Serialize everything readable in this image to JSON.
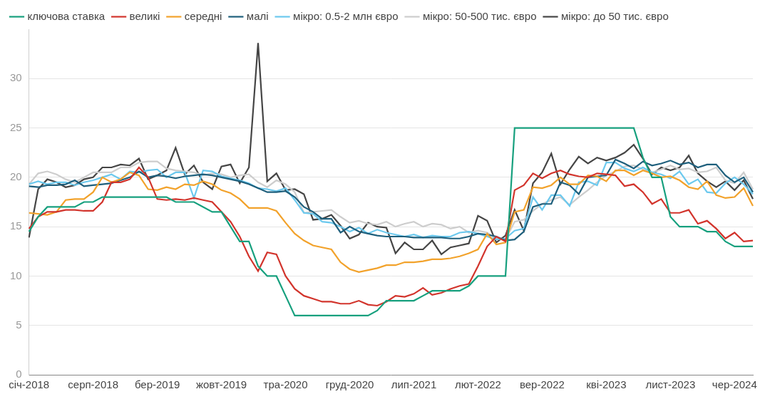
{
  "chart_data": {
    "type": "line",
    "categories": [
      "січ-2018",
      null,
      null,
      null,
      null,
      null,
      null,
      "серп-2018",
      null,
      null,
      null,
      null,
      null,
      null,
      "бер-2019",
      null,
      null,
      null,
      null,
      null,
      null,
      "жовт-2019",
      null,
      null,
      null,
      null,
      null,
      null,
      "тра-2020",
      null,
      null,
      null,
      null,
      null,
      null,
      "груд-2020",
      null,
      null,
      null,
      null,
      null,
      null,
      "лип-2021",
      null,
      null,
      null,
      null,
      null,
      null,
      "лют-2022",
      null,
      null,
      null,
      null,
      null,
      null,
      "вер-2022",
      null,
      null,
      null,
      null,
      null,
      null,
      "кві-2023",
      null,
      null,
      null,
      null,
      null,
      null,
      "лист-2023",
      null,
      null,
      null,
      null,
      null,
      null,
      "чер-2024",
      null,
      null
    ],
    "series": [
      {
        "name": "ключова ставка",
        "color": "#17a07e",
        "values": [
          14.5,
          16,
          17,
          17,
          17,
          17,
          17.5,
          17.5,
          18,
          18,
          18,
          18,
          18,
          18,
          18,
          18,
          17.5,
          17.5,
          17.5,
          17,
          16.5,
          16.5,
          15,
          13.5,
          13.5,
          11,
          10,
          10,
          8,
          6,
          6,
          6,
          6,
          6,
          6,
          6,
          6,
          6,
          6.5,
          7.5,
          7.5,
          7.5,
          7.5,
          8,
          8.5,
          8.5,
          8.5,
          8.5,
          9,
          10,
          10,
          10,
          10,
          25,
          25,
          25,
          25,
          25,
          25,
          25,
          25,
          25,
          25,
          25,
          25,
          25,
          25,
          22,
          20,
          20,
          16,
          15,
          15,
          15,
          14.5,
          14.5,
          13.5,
          13,
          13,
          13
        ]
      },
      {
        "name": "великі",
        "color": "#d2342c",
        "values": [
          14.8,
          16,
          16.5,
          16.5,
          16.7,
          16.7,
          16.6,
          16.6,
          17.5,
          19.5,
          19.5,
          19.8,
          21,
          20,
          17.8,
          17.7,
          17.8,
          17.7,
          17.9,
          17.7,
          17.5,
          16.5,
          15.5,
          14,
          12,
          10.5,
          12.4,
          12.2,
          10,
          8.7,
          8,
          7.7,
          7.4,
          7.4,
          7.2,
          7.2,
          7.5,
          7.1,
          7,
          7.4,
          8,
          7.9,
          8.2,
          8.8,
          8.1,
          8.3,
          8.7,
          9,
          9.2,
          11,
          13,
          14,
          13.5,
          18.7,
          19.2,
          20.4,
          19.9,
          20.4,
          20.7,
          20.3,
          20.1,
          20,
          20.4,
          20.3,
          20.2,
          19.1,
          19.3,
          18.5,
          17.3,
          17.8,
          16.4,
          16.4,
          16.7,
          15.3,
          15.6,
          14.8,
          13.8,
          14.4,
          13.5,
          13.6
        ]
      },
      {
        "name": "середні",
        "color": "#f2a22b",
        "values": [
          16.4,
          16.3,
          16.2,
          16.5,
          17.7,
          17.8,
          17.8,
          18.5,
          20,
          19.5,
          19.8,
          20.5,
          20.2,
          18.8,
          18.7,
          19,
          18.8,
          19.3,
          19.2,
          19.6,
          19.3,
          18.7,
          18.4,
          17.8,
          16.9,
          16.9,
          16.9,
          16.6,
          15.4,
          14.3,
          13.6,
          13.1,
          12.9,
          12.7,
          11.4,
          10.7,
          10.4,
          10.6,
          10.8,
          11.1,
          11.1,
          11.4,
          11.4,
          11.5,
          11.7,
          11.7,
          11.8,
          12,
          12.3,
          12.7,
          14.3,
          13.2,
          13.4,
          16.5,
          16.7,
          19,
          18.9,
          19.2,
          20,
          19.3,
          19.3,
          20.2,
          20.1,
          19.6,
          20.7,
          20.7,
          20.2,
          20.7,
          20.4,
          20,
          20.1,
          19.7,
          19,
          18.8,
          19.6,
          18.2,
          17.9,
          18,
          18.9,
          17.1
        ]
      },
      {
        "name": "малі",
        "color": "#1e5f7c",
        "values": [
          19.1,
          19,
          19.2,
          19.2,
          19.3,
          19.7,
          19.1,
          19.2,
          19.3,
          19.4,
          19.7,
          20,
          20.6,
          20,
          20.2,
          20.1,
          19.9,
          20.1,
          20.2,
          20.3,
          20.2,
          20,
          19.8,
          19.6,
          19.3,
          18.9,
          18.5,
          18.5,
          18.6,
          18,
          17,
          16.5,
          15.8,
          15.8,
          14.4,
          15,
          14.5,
          14.3,
          14.1,
          14,
          14,
          14,
          13.9,
          13.9,
          13.9,
          13.9,
          13.8,
          13.8,
          14,
          14.3,
          14.2,
          14,
          13.6,
          13.7,
          14.5,
          17,
          17.3,
          17.3,
          19.5,
          19.2,
          18.3,
          20,
          20.1,
          20.2,
          21.8,
          21.4,
          20.9,
          21.6,
          21.2,
          21.4,
          21.7,
          21.3,
          21.5,
          21,
          21.3,
          21.3,
          20.2,
          19.5,
          20,
          18.5
        ]
      },
      {
        "name": "мікро: 0.5-2 млн євро",
        "color": "#6cc9ee",
        "values": [
          19.3,
          19.6,
          19.3,
          19.5,
          19.5,
          19.2,
          19.5,
          19.7,
          20,
          20.3,
          19.8,
          20.6,
          20.5,
          20.7,
          20.8,
          20,
          20.5,
          20.5,
          17.9,
          20.7,
          20.6,
          20.1,
          19.9,
          19.7,
          19.4,
          18.9,
          18.8,
          18.6,
          18.9,
          17.7,
          16.4,
          16.3,
          15.5,
          15.4,
          15,
          14.5,
          14.9,
          14.3,
          14.7,
          14.4,
          14.2,
          14,
          14.2,
          13.9,
          14.1,
          14,
          14,
          14.4,
          14.5,
          14.3,
          14,
          13.7,
          13.8,
          14.6,
          14.8,
          18,
          16.7,
          18.2,
          18.2,
          17.1,
          19.5,
          19.6,
          19.2,
          21.5,
          21.5,
          20.9,
          20.6,
          21,
          20.5,
          20.3,
          19.9,
          20.6,
          19.3,
          19.8,
          18.5,
          18.4,
          19.4,
          20,
          19.3,
          18.3
        ]
      },
      {
        "name": "мікро: 50-500 тис. євро",
        "color": "#cdcdcd",
        "values": [
          19.3,
          20.4,
          20.6,
          20.3,
          19.8,
          19.5,
          20,
          20.5,
          20.5,
          20.5,
          21,
          21,
          21.5,
          21.6,
          21.6,
          20.9,
          20.7,
          20.6,
          20.5,
          20.2,
          20.4,
          20.3,
          20,
          20.2,
          20.3,
          19.5,
          19,
          19.7,
          19.3,
          18.5,
          16.4,
          16.5,
          16.6,
          16.7,
          16,
          15.4,
          15.6,
          15.3,
          15.2,
          15.5,
          15,
          15.3,
          15.5,
          15,
          15.3,
          15.2,
          14.8,
          15,
          14.4,
          14.6,
          14.4,
          13.8,
          13.7,
          15.5,
          15.7,
          16.6,
          17.3,
          17.7,
          18,
          17.2,
          18,
          18.7,
          19.5,
          20.2,
          20.6,
          21.1,
          21.2,
          20.8,
          20.5,
          20.8,
          21.2,
          20.8,
          20.9,
          20.5,
          20.6,
          21,
          19.7,
          19.4,
          20.5,
          18.8
        ]
      },
      {
        "name": "мікро: до 50 тис. євро",
        "color": "#454545",
        "values": [
          13.9,
          18.8,
          19.8,
          19.5,
          19,
          19.2,
          19.8,
          20,
          21,
          21,
          21.3,
          21.2,
          21.9,
          19.8,
          20.2,
          20.7,
          23,
          20.3,
          21.2,
          19.5,
          18.8,
          21.1,
          21.3,
          19.4,
          21,
          33.6,
          19.6,
          20.4,
          18.7,
          18.8,
          18.3,
          15.7,
          15.8,
          16.2,
          15.1,
          13.8,
          14.2,
          15.4,
          15,
          14.9,
          12.3,
          13.4,
          12.7,
          12.7,
          13.6,
          12.2,
          12.9,
          13.1,
          13.3,
          16.1,
          15.6,
          13.4,
          14.1,
          16.7,
          14.6,
          19.4,
          20.5,
          22.4,
          19.3,
          20.8,
          22.1,
          21.4,
          22,
          21.7,
          22,
          22.5,
          23.3,
          21.9,
          20.3,
          21,
          20.7,
          21,
          22.2,
          20.4,
          19.6,
          19,
          19.6,
          18.7,
          19.7,
          17.8
        ]
      }
    ],
    "ylim": [
      0,
      35
    ],
    "yticks": [
      0,
      5,
      10,
      15,
      20,
      25,
      30
    ],
    "grid": true,
    "legend": "top"
  }
}
